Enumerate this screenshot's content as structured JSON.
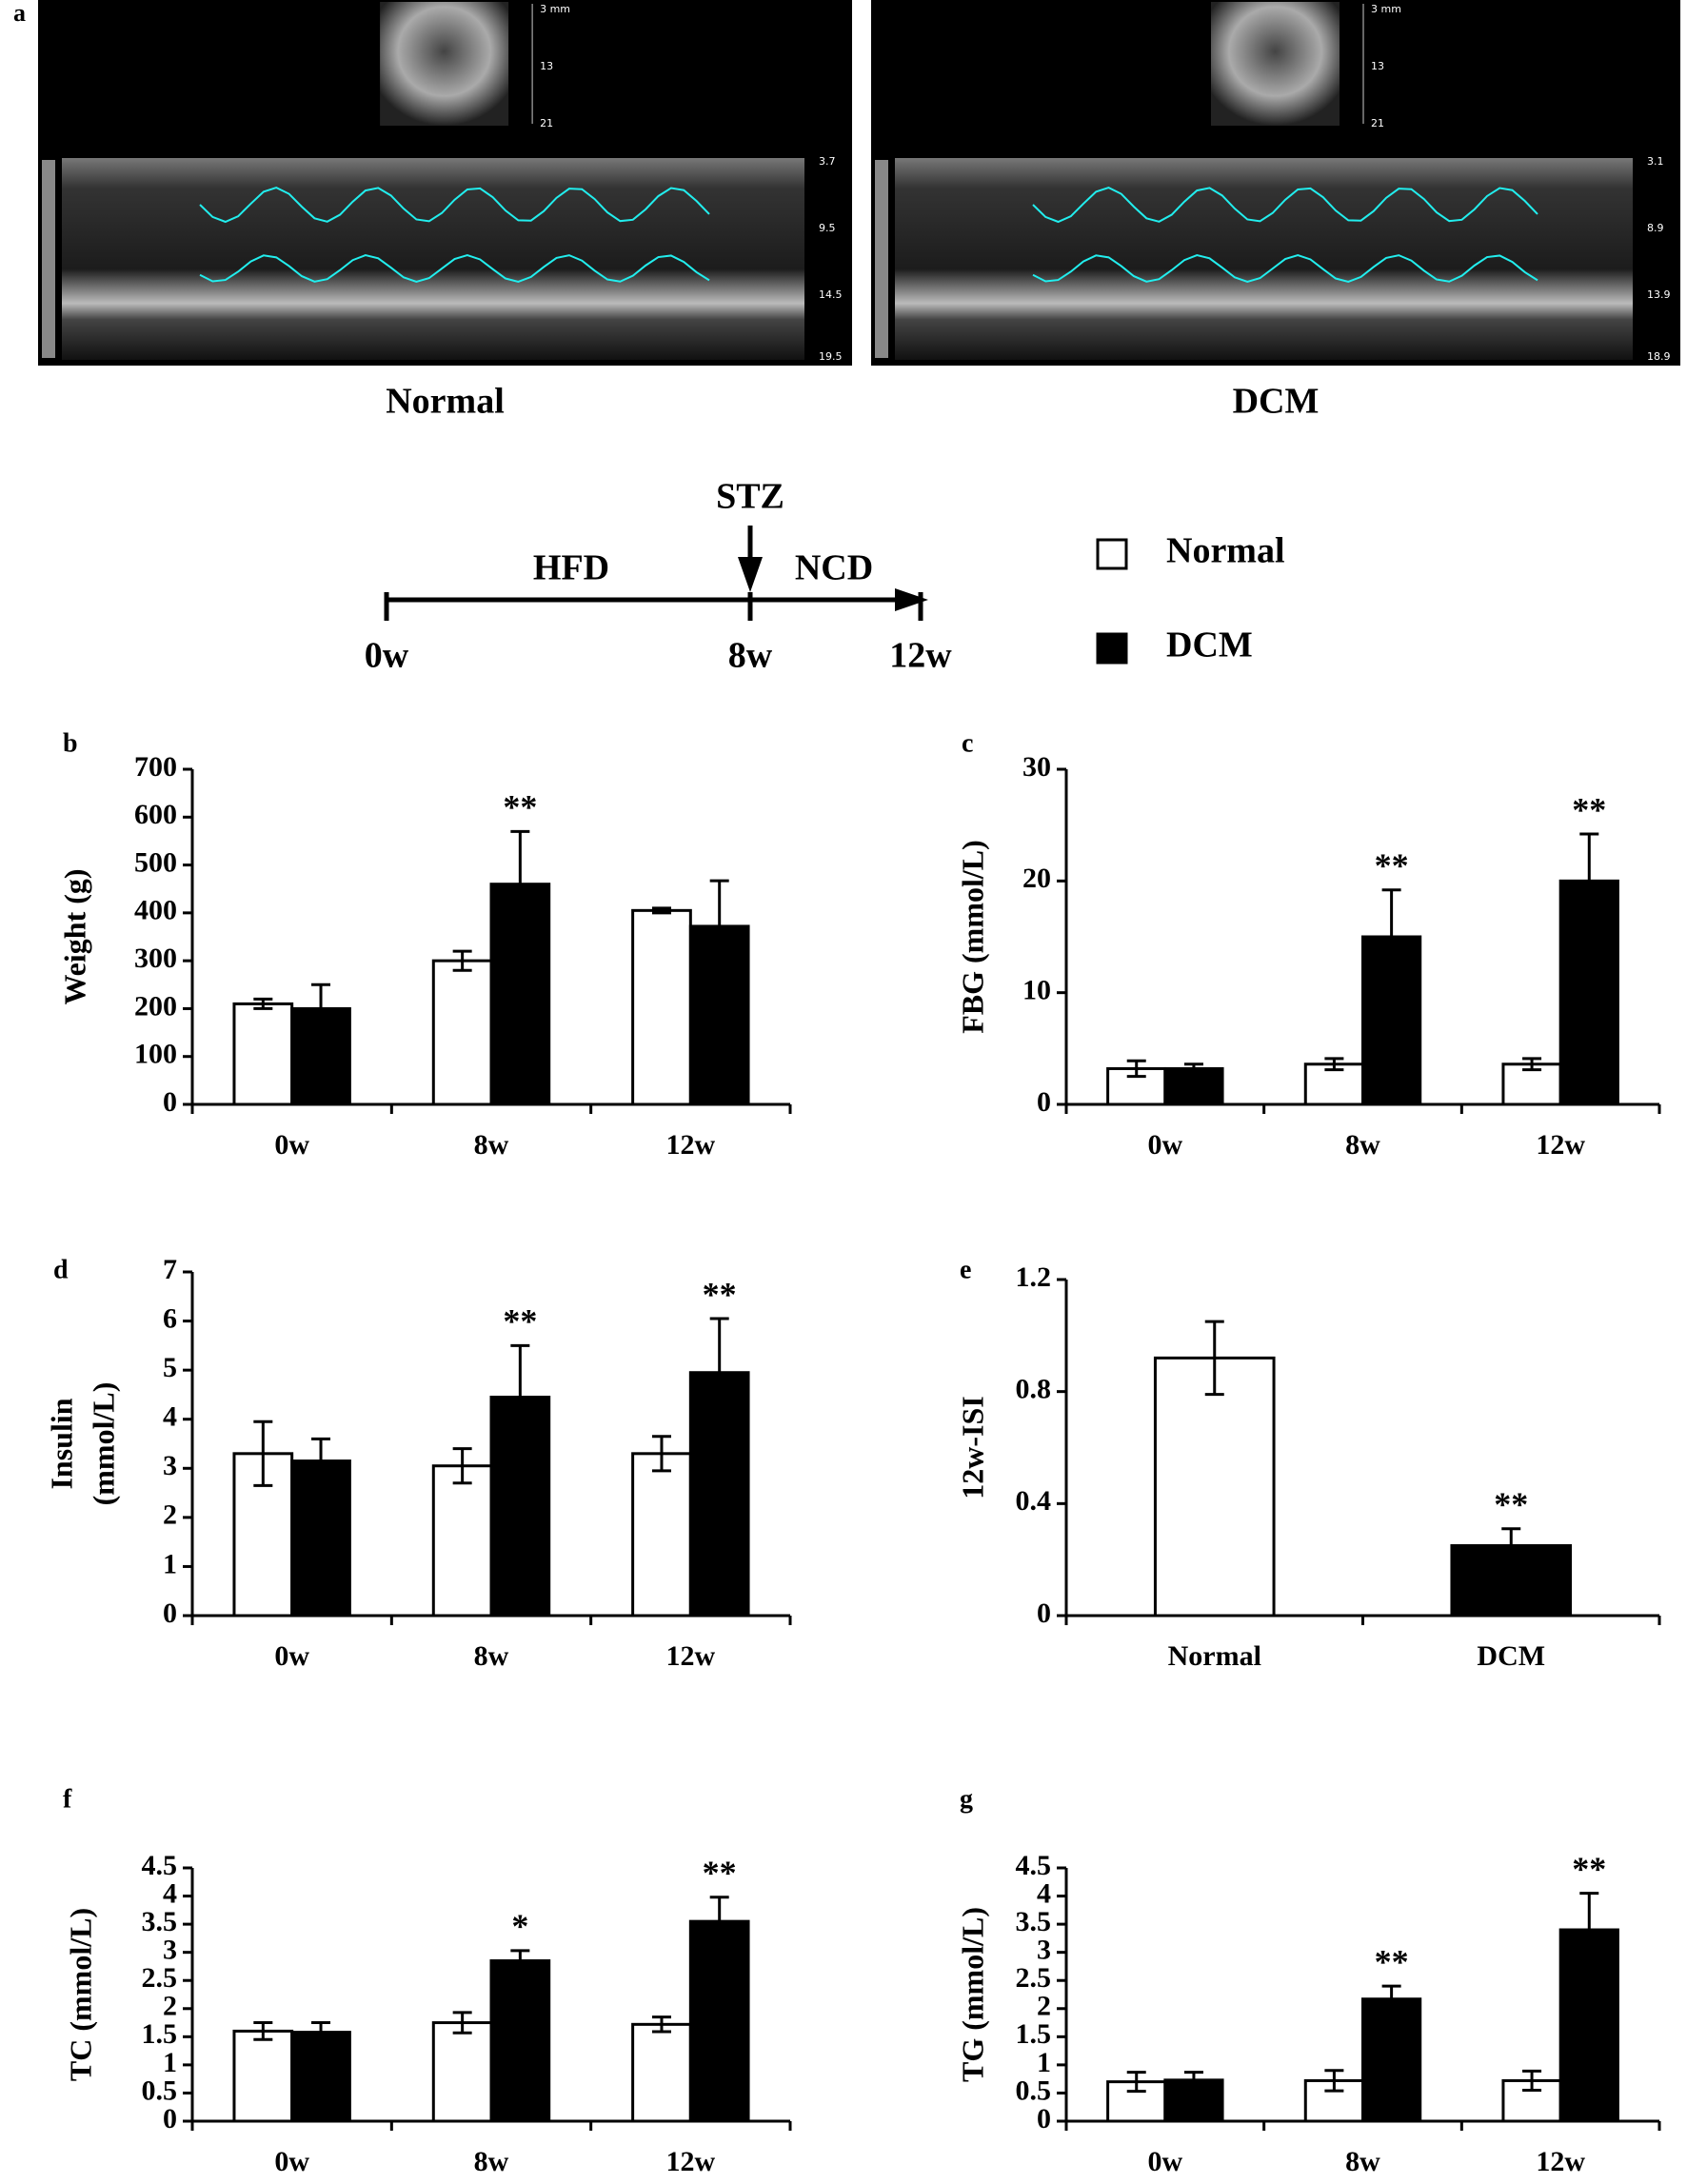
{
  "panel_a": {
    "label": "a",
    "images": [
      {
        "caption": "Normal",
        "scale_fan": [
          "3 mm",
          "13",
          "21"
        ],
        "scale_strip": [
          "3.7",
          "9.5",
          "14.5",
          "19.5"
        ]
      },
      {
        "caption": "DCM",
        "scale_fan": [
          "3 mm",
          "13",
          "21"
        ],
        "scale_strip": [
          "3.1",
          "8.9",
          "13.9",
          "18.9"
        ]
      }
    ]
  },
  "timeline": {
    "diet1": "HFD",
    "injection": "STZ",
    "diet2": "NCD",
    "times": [
      "0w",
      "8w",
      "12w"
    ]
  },
  "legend": [
    {
      "name": "Normal",
      "color": "#ffffff"
    },
    {
      "name": "DCM",
      "color": "#000000"
    }
  ],
  "chart_data": [
    {
      "type": "bar",
      "panel": "b",
      "ylabel": "Weight (g)",
      "categories": [
        "0w",
        "8w",
        "12w"
      ],
      "ylim": [
        0,
        700
      ],
      "yticks": [
        0,
        100,
        200,
        300,
        400,
        500,
        600,
        700
      ],
      "series": [
        {
          "color": "#ffffff",
          "values": [
            210,
            300,
            405
          ],
          "errors": [
            10,
            20,
            5
          ]
        },
        {
          "color": "#000000",
          "values": [
            200,
            460,
            372
          ],
          "errors": [
            50,
            110,
            95
          ],
          "significance": [
            null,
            "**",
            null
          ]
        }
      ]
    },
    {
      "type": "bar",
      "panel": "c",
      "ylabel": "FBG (mmol/L)",
      "categories": [
        "0w",
        "8w",
        "12w"
      ],
      "ylim": [
        0,
        30
      ],
      "yticks": [
        0,
        10,
        20,
        30
      ],
      "series": [
        {
          "color": "#ffffff",
          "values": [
            3.2,
            3.6,
            3.6
          ],
          "errors": [
            0.7,
            0.5,
            0.5
          ]
        },
        {
          "color": "#000000",
          "values": [
            3.2,
            15,
            20
          ],
          "errors": [
            0.4,
            4.2,
            4.2
          ],
          "significance": [
            null,
            "**",
            "**"
          ]
        }
      ]
    },
    {
      "type": "bar",
      "panel": "d",
      "ylabel": [
        "Insulin",
        "(mmol/L)"
      ],
      "categories": [
        "0w",
        "8w",
        "12w"
      ],
      "ylim": [
        0,
        7
      ],
      "yticks": [
        0,
        1,
        2,
        3,
        4,
        5,
        6,
        7
      ],
      "series": [
        {
          "color": "#ffffff",
          "values": [
            3.3,
            3.05,
            3.3
          ],
          "errors": [
            0.65,
            0.35,
            0.35
          ]
        },
        {
          "color": "#000000",
          "values": [
            3.15,
            4.45,
            4.95
          ],
          "errors": [
            0.45,
            1.05,
            1.1
          ],
          "significance": [
            null,
            "**",
            "**"
          ]
        }
      ]
    },
    {
      "type": "bar",
      "panel": "e",
      "ylabel": "12w-ISI",
      "categories": [
        "Normal",
        "DCM"
      ],
      "ylim": [
        0,
        1.2
      ],
      "yticks": [
        0,
        0.4,
        0.8,
        1.2
      ],
      "series": [
        {
          "colors": [
            "#ffffff",
            "#000000"
          ],
          "values": [
            0.92,
            0.25
          ],
          "errors": [
            0.13,
            0.06
          ],
          "significance": [
            null,
            "**"
          ]
        }
      ]
    },
    {
      "type": "bar",
      "panel": "f",
      "ylabel": "TC (mmol/L)",
      "categories": [
        "0w",
        "8w",
        "12w"
      ],
      "ylim": [
        0,
        4.5
      ],
      "yticks": [
        0,
        0.5,
        1,
        1.5,
        2,
        2.5,
        3,
        3.5,
        4,
        4.5
      ],
      "series": [
        {
          "color": "#ffffff",
          "values": [
            1.6,
            1.75,
            1.72
          ],
          "errors": [
            0.15,
            0.18,
            0.13
          ]
        },
        {
          "color": "#000000",
          "values": [
            1.58,
            2.85,
            3.55
          ],
          "errors": [
            0.17,
            0.18,
            0.43
          ],
          "significance": [
            null,
            "*",
            "**"
          ]
        }
      ]
    },
    {
      "type": "bar",
      "panel": "g",
      "ylabel": "TG (mmol/L)",
      "categories": [
        "0w",
        "8w",
        "12w"
      ],
      "ylim": [
        0,
        4.5
      ],
      "yticks": [
        0,
        0.5,
        1,
        1.5,
        2,
        2.5,
        3,
        3.5,
        4,
        4.5
      ],
      "series": [
        {
          "color": "#ffffff",
          "values": [
            0.7,
            0.72,
            0.72
          ],
          "errors": [
            0.17,
            0.18,
            0.17
          ]
        },
        {
          "color": "#000000",
          "values": [
            0.73,
            2.17,
            3.4
          ],
          "errors": [
            0.14,
            0.23,
            0.65
          ],
          "significance": [
            null,
            "**",
            "**"
          ]
        }
      ]
    }
  ]
}
